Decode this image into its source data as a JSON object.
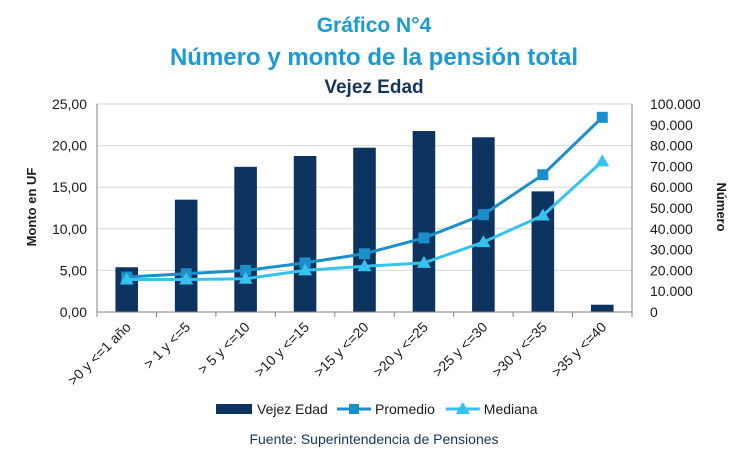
{
  "chart_data": {
    "type": "bar+line",
    "title": "Gráfico N°4",
    "subtitle": "Número y monto de la pensión total",
    "subsubtitle": "Vejez Edad",
    "categories": [
      ">0 y <=1 año",
      "> 1 y <=5",
      "> 5 y <=10",
      ">10 y <=15",
      ">15 y <=20",
      ">20 y <=25",
      ">25 y <=30",
      ">30 y <=35",
      ">35 y <=40"
    ],
    "series": [
      {
        "name": "Vejez Edad",
        "type": "bar",
        "axis": "right",
        "color": "#0d3461",
        "values": [
          21500,
          54000,
          69800,
          75000,
          79000,
          87000,
          84000,
          58000,
          3500
        ]
      },
      {
        "name": "Promedio",
        "type": "line",
        "axis": "left",
        "marker": "square",
        "color": "#1a8fc9",
        "values": [
          4.2,
          4.6,
          5.0,
          5.9,
          7.0,
          8.9,
          11.7,
          16.5,
          23.4
        ]
      },
      {
        "name": "Mediana",
        "type": "line",
        "axis": "left",
        "marker": "triangle",
        "color": "#35c2ef",
        "values": [
          3.9,
          3.9,
          4.0,
          5.0,
          5.5,
          5.9,
          8.4,
          11.6,
          18.1
        ]
      }
    ],
    "ylabel": "Monto en UF",
    "y2label": "Número",
    "ylim": [
      0,
      25
    ],
    "y2lim": [
      0,
      100000
    ],
    "yticks": [
      "0,00",
      "5,00",
      "10,00",
      "15,00",
      "20,00",
      "25,00"
    ],
    "y2ticks": [
      "0",
      "10.000",
      "20.000",
      "30.000",
      "40.000",
      "50.000",
      "60.000",
      "70.000",
      "80.000",
      "90.000",
      "100.000"
    ],
    "legend": "bottom",
    "source": "Fuente: Superintendencia de Pensiones"
  }
}
